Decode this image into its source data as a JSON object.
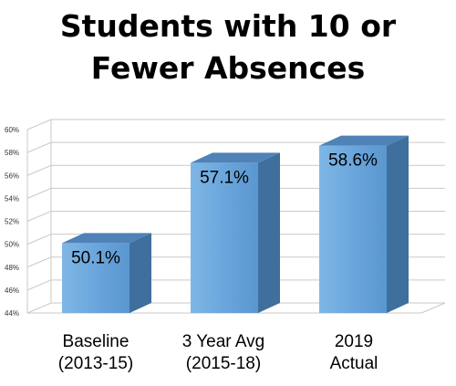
{
  "chart_data": {
    "type": "bar",
    "title_lines": [
      "Students with 10 or",
      "Fewer Absences"
    ],
    "categories": [
      [
        "Baseline",
        "(2013-15)"
      ],
      [
        "3 Year Avg",
        "(2015-18)"
      ],
      [
        "2019",
        "Actual"
      ]
    ],
    "values": [
      50.1,
      57.1,
      58.6
    ],
    "data_labels": [
      "50.1%",
      "57.1%",
      "58.6%"
    ],
    "y_ticks": [
      "44%",
      "46%",
      "48%",
      "50%",
      "52%",
      "54%",
      "56%",
      "58%",
      "60%"
    ],
    "ylim": [
      44,
      60
    ],
    "grid": true,
    "bar_color": "#6aa6dc",
    "bar_side_color": "#3f6f9c",
    "bar_top_color": "#4f82b6"
  }
}
